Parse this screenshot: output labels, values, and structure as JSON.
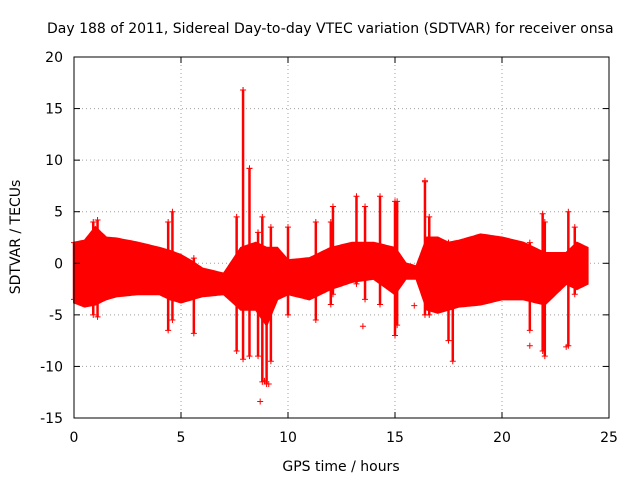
{
  "chart_data": {
    "type": "scatter",
    "title": "Day 188 of 2011, Sidereal Day-to-day VTEC variation (SDTVAR) for receiver onsa",
    "xlabel": "GPS time / hours",
    "ylabel": "SDTVAR / TECUs",
    "xlim": [
      0,
      25
    ],
    "ylim": [
      -15,
      20
    ],
    "xticks": [
      0,
      5,
      10,
      15,
      20,
      25
    ],
    "yticks": [
      -15,
      -10,
      -5,
      0,
      5,
      10,
      15,
      20
    ],
    "grid": true,
    "marker": "+",
    "color": "#ff0000",
    "series": [
      {
        "name": "SDTVAR",
        "envelope": {
          "x": [
            0,
            0.5,
            1,
            1.5,
            2,
            3,
            4,
            4.5,
            5,
            5.5,
            6,
            7,
            7.8,
            8.5,
            9,
            9.5,
            10,
            11,
            12,
            13,
            14,
            15,
            15.5,
            16,
            16.5,
            17,
            17.5,
            18,
            19,
            20,
            21,
            22,
            23,
            23.5,
            24
          ],
          "upper": [
            2,
            2.2,
            3.5,
            2.5,
            2.4,
            2,
            1.5,
            1.2,
            0.8,
            0.2,
            -0.5,
            -1,
            1.5,
            2,
            1.5,
            1.5,
            0.3,
            0.5,
            1.5,
            2,
            2,
            1.5,
            0,
            -0.3,
            2.5,
            2.5,
            2,
            2.2,
            2.8,
            2.5,
            2,
            1,
            1,
            2,
            1.5
          ],
          "lower": [
            -3.8,
            -4.2,
            -4,
            -3.5,
            -3.2,
            -3,
            -3,
            -3.5,
            -3.8,
            -3.5,
            -3.2,
            -3,
            -4.5,
            -4.5,
            -6,
            -3.5,
            -3,
            -3.5,
            -2.5,
            -1.8,
            -1.5,
            -3,
            -1.5,
            -1.5,
            -4.5,
            -4.8,
            -4.5,
            -4.2,
            -4,
            -3.5,
            -3.5,
            -4,
            -2,
            -2.5,
            -2
          ]
        },
        "spikes": [
          {
            "x": 0.0,
            "low": -3.5,
            "high": 2
          },
          {
            "x": 0.9,
            "low": -5,
            "high": 4
          },
          {
            "x": 1.1,
            "low": -5.2,
            "high": 4.2
          },
          {
            "x": 4.4,
            "low": -6.5,
            "high": 4
          },
          {
            "x": 4.6,
            "low": -5.5,
            "high": 5
          },
          {
            "x": 5.6,
            "low": -6.8,
            "high": 0.5
          },
          {
            "x": 7.6,
            "low": -8.5,
            "high": 4.5
          },
          {
            "x": 7.9,
            "low": -9.3,
            "high": 16.8
          },
          {
            "x": 8.2,
            "low": -9,
            "high": 9.2
          },
          {
            "x": 8.6,
            "low": -9,
            "high": 3
          },
          {
            "x": 8.8,
            "low": -11.5,
            "high": 4.5
          },
          {
            "x": 9.0,
            "low": -11.7,
            "high": 0
          },
          {
            "x": 9.2,
            "low": -9.5,
            "high": 3.5
          },
          {
            "x": 10.0,
            "low": -5,
            "high": 3.5
          },
          {
            "x": 11.3,
            "low": -5.5,
            "high": 4
          },
          {
            "x": 12.0,
            "low": -4,
            "high": 4
          },
          {
            "x": 12.1,
            "low": -3,
            "high": 5.5
          },
          {
            "x": 13.2,
            "low": -2,
            "high": 6.5
          },
          {
            "x": 13.6,
            "low": -3.5,
            "high": 5.5
          },
          {
            "x": 14.3,
            "low": -4,
            "high": 6.5
          },
          {
            "x": 15.0,
            "low": -7,
            "high": 6
          },
          {
            "x": 15.1,
            "low": -6,
            "high": 6
          },
          {
            "x": 16.4,
            "low": -5,
            "high": 7.9
          },
          {
            "x": 16.6,
            "low": -5,
            "high": 4.5
          },
          {
            "x": 17.5,
            "low": -7.5,
            "high": 2
          },
          {
            "x": 17.7,
            "low": -9.5,
            "high": 1.5
          },
          {
            "x": 21.3,
            "low": -6.5,
            "high": 2
          },
          {
            "x": 21.9,
            "low": -8.5,
            "high": 4.8
          },
          {
            "x": 22.0,
            "low": -9,
            "high": 4
          },
          {
            "x": 23.1,
            "low": -8,
            "high": 5
          },
          {
            "x": 23.4,
            "low": -3,
            "high": 3.5
          }
        ],
        "outliers": [
          {
            "x": 7.9,
            "y": 16.8
          },
          {
            "x": 8.2,
            "y": 9.2
          },
          {
            "x": 8.7,
            "y": -13.4
          },
          {
            "x": 9.1,
            "y": -11.7
          },
          {
            "x": 8.9,
            "y": -11.4
          },
          {
            "x": 13.5,
            "y": -6.1
          },
          {
            "x": 16.4,
            "y": 8.0
          },
          {
            "x": 15.9,
            "y": -4.1
          },
          {
            "x": 21.3,
            "y": -8.0
          },
          {
            "x": 23.0,
            "y": -8.1
          }
        ]
      }
    ]
  }
}
